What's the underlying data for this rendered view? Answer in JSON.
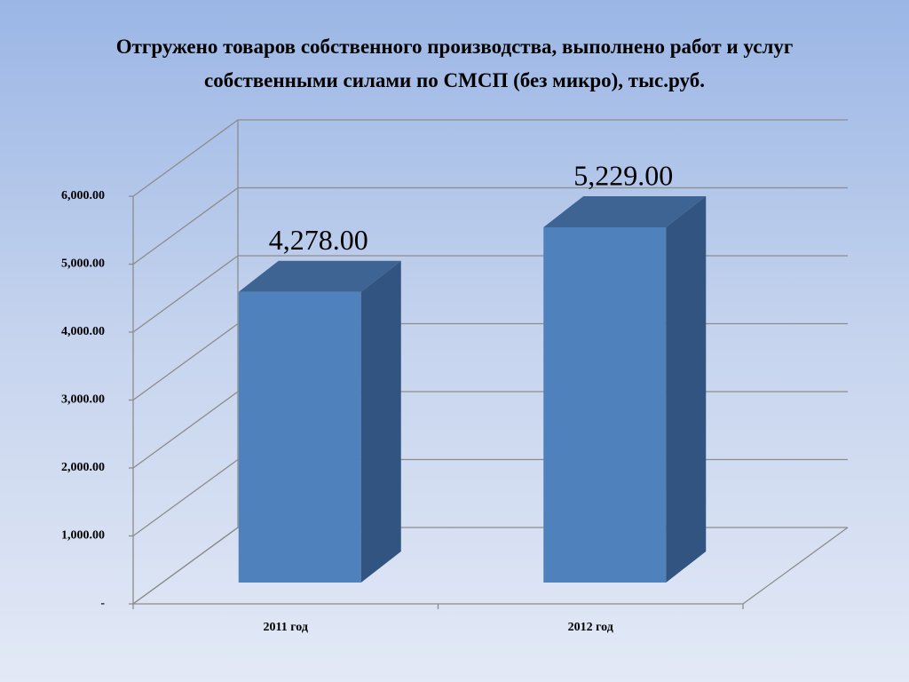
{
  "chart_data": {
    "type": "bar3d",
    "title": "Отгружено товаров собственного производства, выполнено работ и услуг собственными силами по СМСП (без микро), тыс.руб.",
    "categories": [
      "2011 год",
      "2012 год"
    ],
    "values": [
      4278,
      5229
    ],
    "value_labels": [
      "4,278.00",
      "5,229.00"
    ],
    "color": "#4f81bd",
    "ylim": [
      0,
      6000
    ],
    "yticks": [
      {
        "value": 0,
        "label": "-"
      },
      {
        "value": 1000,
        "label": "1,000.00"
      },
      {
        "value": 2000,
        "label": "2,000.00"
      },
      {
        "value": 3000,
        "label": "3,000.00"
      },
      {
        "value": 4000,
        "label": "4,000.00"
      },
      {
        "value": 5000,
        "label": "5,000.00"
      },
      {
        "value": 6000,
        "label": "6,000.00"
      }
    ],
    "grid": true
  }
}
